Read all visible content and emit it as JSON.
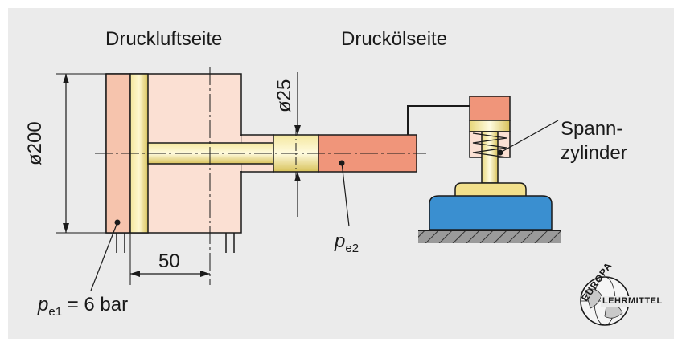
{
  "headings": {
    "air_side": "Druckluftseite",
    "oil_side": "Druckölseite"
  },
  "dimensions": {
    "diameter_large": "ø200",
    "diameter_small": "ø25",
    "stroke_offset": "50"
  },
  "labels": {
    "clamp_line1": "Spann-",
    "clamp_line2": "zylinder",
    "p_e1_symbol": "p",
    "p_e1_sub": "e1",
    "p_e1_value": " = 6 bar",
    "p_e2_symbol": "p",
    "p_e2_sub": "e2"
  },
  "logo": {
    "text_top": "EUROPA",
    "text_bottom": "LEHRMITTEL"
  },
  "colors": {
    "background": "#ebebeb",
    "air_chamber": "#fbe0d3",
    "air_front": "#f6c4ad",
    "oil": "#f0957a",
    "piston": "#e8d77a",
    "base_blue": "#3a8fd0",
    "outline": "#1a1a1a"
  }
}
